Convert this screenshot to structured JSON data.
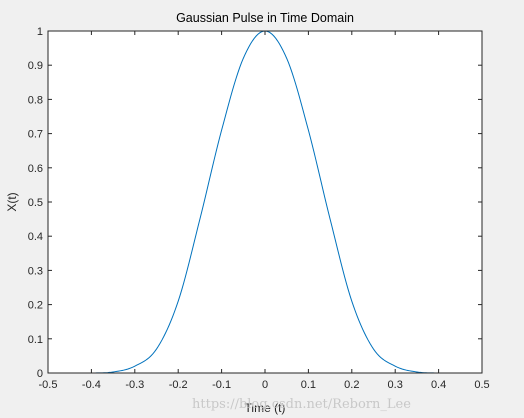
{
  "chart_data": {
    "type": "line",
    "title": "Gaussian Pulse in Time Domain",
    "xlabel": "Time (t)",
    "ylabel": "X(t)",
    "xlim": [
      -0.5,
      0.5
    ],
    "ylim": [
      0,
      1
    ],
    "xticks": [
      "-0.5",
      "-0.4",
      "-0.3",
      "-0.2",
      "-0.1",
      "0",
      "0.1",
      "0.2",
      "0.3",
      "0.4",
      "0.5"
    ],
    "yticks": [
      "0",
      "0.1",
      "0.2",
      "0.3",
      "0.4",
      "0.5",
      "0.6",
      "0.7",
      "0.8",
      "0.9",
      "1"
    ],
    "grid": false,
    "line_color": "#0072bd",
    "series": [
      {
        "x": [
          -0.5,
          -0.45,
          -0.4,
          -0.35,
          -0.3,
          -0.25,
          -0.2,
          -0.15,
          -0.1,
          -0.05,
          0,
          0.05,
          0.1,
          0.15,
          0.2,
          0.25,
          0.3,
          0.35,
          0.4,
          0.45,
          0.5
        ],
        "y": [
          0.0,
          0.0,
          0.0,
          0.003,
          0.02,
          0.07,
          0.21,
          0.45,
          0.71,
          0.92,
          1.0,
          0.92,
          0.71,
          0.45,
          0.21,
          0.07,
          0.02,
          0.003,
          0.0,
          0.0,
          0.0
        ]
      }
    ]
  },
  "watermark": "https://blog.csdn.net/Reborn_Lee"
}
